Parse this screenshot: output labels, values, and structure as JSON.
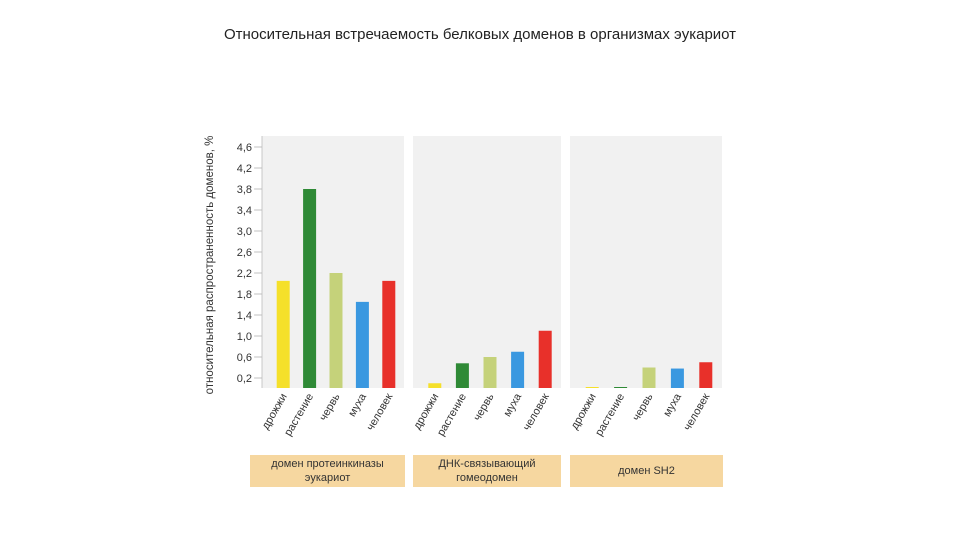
{
  "slide": {
    "title": "Относительная встречаемость белковых доменов в организмах эукариот"
  },
  "chart_data": {
    "type": "bar",
    "ylabel": "относительная распространенность доменов, %",
    "yticks": [
      "0,2",
      "0,6",
      "1,0",
      "1,4",
      "1,8",
      "2,2",
      "2,6",
      "3,0",
      "3,4",
      "3,8",
      "4,2",
      "4,6"
    ],
    "ylim": [
      0,
      4.7
    ],
    "grid": false,
    "categories": [
      "дрожжи",
      "растение",
      "червь",
      "муха",
      "человек"
    ],
    "colors": [
      "#f5e02a",
      "#2f8a36",
      "#c5d27a",
      "#3a98e0",
      "#e8302a"
    ],
    "panels": [
      {
        "label": "домен протеинкиназы\nэукариот",
        "values": [
          2.05,
          3.8,
          2.2,
          1.65,
          2.05
        ]
      },
      {
        "label": "ДНК-связывающий\nгомеодомен",
        "values": [
          0.1,
          0.48,
          0.6,
          0.7,
          1.1
        ]
      },
      {
        "label": "домен SH2",
        "values": [
          0.01,
          0.02,
          0.4,
          0.38,
          0.5
        ]
      }
    ]
  }
}
